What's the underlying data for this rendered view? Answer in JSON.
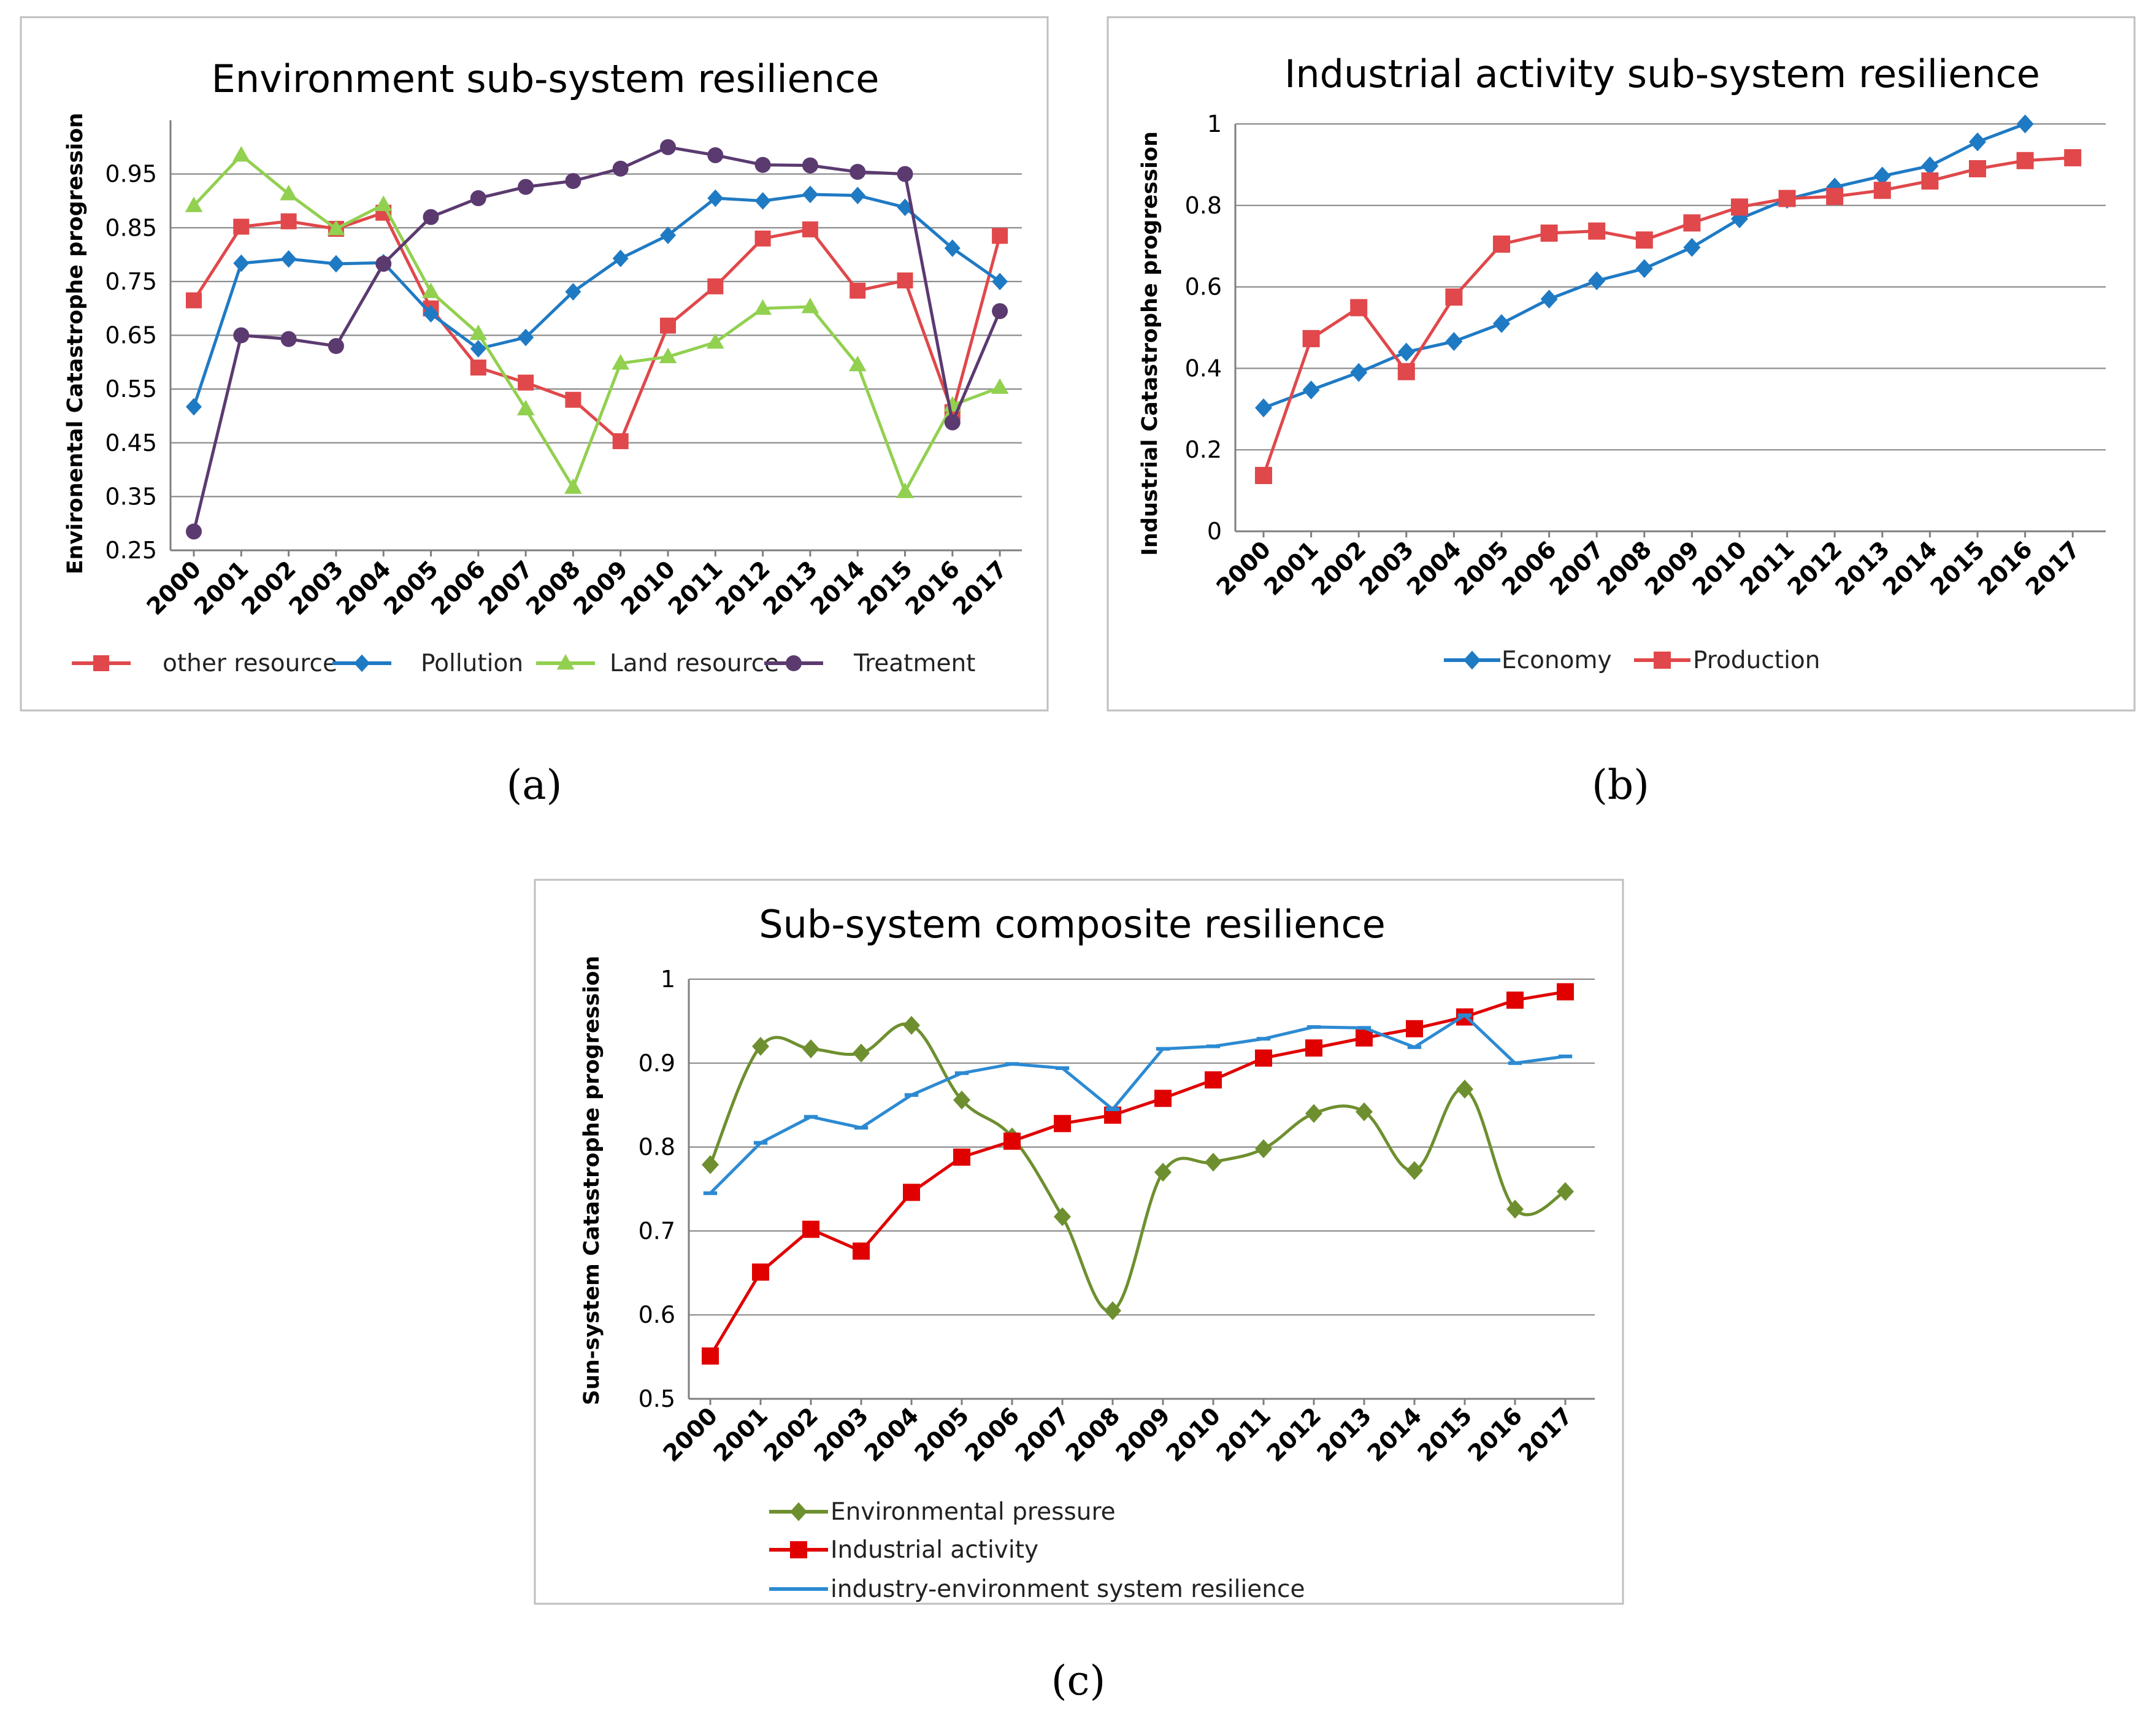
{
  "panel_labels": [
    "(a)",
    "(b)",
    "(c)"
  ],
  "colors": {
    "red": "#e0484b",
    "blue": "#1f7ac4",
    "green": "#92d050",
    "purple": "#5b3a70",
    "olive": "#6e8f2f",
    "bright_red": "#e00000",
    "line_blue": "#2c8ad2"
  },
  "chart_data": [
    {
      "id": "a",
      "type": "line",
      "title": "Environment sub-system resilience",
      "xlabel": "",
      "ylabel": "Environental Catastrophe progression",
      "categories": [
        "2000",
        "2001",
        "2002",
        "2003",
        "2004",
        "2005",
        "2006",
        "2007",
        "2008",
        "2009",
        "2010",
        "2011",
        "2012",
        "2013",
        "2014",
        "2015",
        "2016",
        "2017"
      ],
      "ylim": [
        0.25,
        1.05
      ],
      "yticks": [
        0.25,
        0.35,
        0.45,
        0.55,
        0.65,
        0.75,
        0.85,
        0.95
      ],
      "ytick_labels": [
        "0.25",
        "0.35",
        "0.45",
        "0.55",
        "0.65",
        "0.75",
        "0.85",
        "0.95"
      ],
      "legend_position": "bottom",
      "series": [
        {
          "name": "other resource",
          "color": "#e0484b",
          "marker": "square",
          "values": [
            0.715,
            0.852,
            0.862,
            0.848,
            0.878,
            0.7,
            0.59,
            0.562,
            0.53,
            0.453,
            0.668,
            0.741,
            0.83,
            0.847,
            0.733,
            0.752,
            0.507,
            0.835
          ]
        },
        {
          "name": "Pollution",
          "color": "#1f7ac4",
          "marker": "diamond",
          "values": [
            0.517,
            0.784,
            0.792,
            0.783,
            0.785,
            0.69,
            0.625,
            0.646,
            0.731,
            0.793,
            0.836,
            0.905,
            0.9,
            0.912,
            0.91,
            0.888,
            0.812,
            0.75
          ]
        },
        {
          "name": "Land resource",
          "color": "#92d050",
          "marker": "triangle",
          "values": [
            0.891,
            0.985,
            0.913,
            0.848,
            0.893,
            0.731,
            0.653,
            0.513,
            0.367,
            0.598,
            0.61,
            0.637,
            0.7,
            0.703,
            0.595,
            0.359,
            0.52,
            0.553
          ]
        },
        {
          "name": "Treatment",
          "color": "#5b3a70",
          "marker": "circle",
          "values": [
            0.285,
            0.65,
            0.643,
            0.63,
            0.783,
            0.87,
            0.905,
            0.926,
            0.937,
            0.96,
            1.0,
            0.985,
            0.967,
            0.966,
            0.954,
            0.95,
            0.488,
            0.695
          ]
        }
      ]
    },
    {
      "id": "b",
      "type": "line",
      "title": "Industrial activity  sub-system resilience",
      "xlabel": "",
      "ylabel": "Industrial Catastrophe progression",
      "categories": [
        "2000",
        "2001",
        "2002",
        "2003",
        "2004",
        "2005",
        "2006",
        "2007",
        "2008",
        "2009",
        "2010",
        "2011",
        "2012",
        "2013",
        "2014",
        "2015",
        "2016",
        "2017"
      ],
      "ylim": [
        0,
        1
      ],
      "yticks": [
        0,
        0.2,
        0.4,
        0.6,
        0.8,
        1
      ],
      "ytick_labels": [
        "0",
        "0.2",
        "0.4",
        "0.6",
        "0.8",
        "1"
      ],
      "legend_position": "bottom",
      "series": [
        {
          "name": "Economy",
          "color": "#1f7ac4",
          "marker": "diamond",
          "values": [
            0.303,
            0.347,
            0.39,
            0.44,
            0.466,
            0.51,
            0.57,
            0.615,
            0.645,
            0.697,
            0.767,
            0.815,
            0.845,
            0.872,
            0.897,
            0.956,
            1.0,
            null
          ]
        },
        {
          "name": "Production",
          "color": "#e0484b",
          "marker": "square",
          "values": [
            0.137,
            0.473,
            0.549,
            0.392,
            0.575,
            0.705,
            0.732,
            0.737,
            0.715,
            0.757,
            0.796,
            0.817,
            0.822,
            0.837,
            0.86,
            0.89,
            0.91,
            0.917
          ]
        }
      ]
    },
    {
      "id": "c",
      "type": "line",
      "title": "Sub-system composite resilience",
      "xlabel": "",
      "ylabel": "Sun-system Catastrophe progression",
      "categories": [
        "2000",
        "2001",
        "2002",
        "2003",
        "2004",
        "2005",
        "2006",
        "2007",
        "2008",
        "2009",
        "2010",
        "2011",
        "2012",
        "2013",
        "2014",
        "2015",
        "2016",
        "2017"
      ],
      "ylim": [
        0.5,
        1
      ],
      "yticks": [
        0.5,
        0.6,
        0.7,
        0.8,
        0.9,
        1
      ],
      "ytick_labels": [
        "0.5",
        "0.6",
        "0.7",
        "0.8",
        "0.9",
        "1"
      ],
      "legend_position": "bottom",
      "series": [
        {
          "name": "Environmental pressure",
          "color": "#6e8f2f",
          "marker": "diamond",
          "smooth": true,
          "values": [
            0.779,
            0.92,
            0.917,
            0.912,
            0.945,
            0.856,
            0.812,
            0.717,
            0.605,
            0.77,
            0.782,
            0.798,
            0.84,
            0.842,
            0.772,
            0.869,
            0.726,
            0.747
          ]
        },
        {
          "name": "Industrial activity",
          "color": "#e00000",
          "marker": "square",
          "smooth": false,
          "values": [
            0.551,
            0.651,
            0.702,
            0.676,
            0.746,
            0.788,
            0.807,
            0.828,
            0.838,
            0.858,
            0.88,
            0.906,
            0.918,
            0.93,
            0.941,
            0.955,
            0.975,
            0.985
          ]
        },
        {
          "name": "industry-environment system resilience",
          "color": "#2c8ad2",
          "marker": "dash",
          "smooth": false,
          "values": [
            0.745,
            0.805,
            0.836,
            0.823,
            0.862,
            0.888,
            0.899,
            0.894,
            0.845,
            0.917,
            0.92,
            0.929,
            0.943,
            0.942,
            0.919,
            0.957,
            0.9,
            0.908
          ]
        }
      ]
    }
  ]
}
